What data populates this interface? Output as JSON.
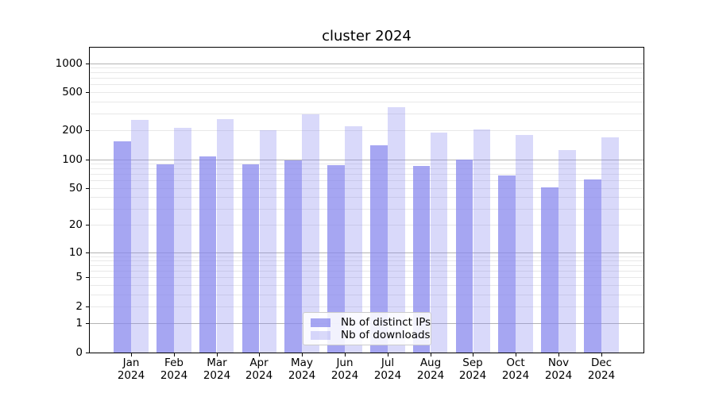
{
  "chart_data": {
    "type": "bar",
    "title": "cluster 2024",
    "categories": [
      "Jan",
      "Feb",
      "Mar",
      "Apr",
      "May",
      "Jun",
      "Jul",
      "Aug",
      "Sep",
      "Oct",
      "Nov",
      "Dec"
    ],
    "category_year": "2024",
    "series": [
      {
        "name": "Nb of distinct IPs",
        "color": "#8888ee",
        "alpha": 0.75,
        "values": [
          155,
          89,
          108,
          89,
          97,
          86,
          141,
          85,
          100,
          67,
          51,
          62
        ]
      },
      {
        "name": "Nb of downloads",
        "color": "#8888ee",
        "alpha": 0.32,
        "values": [
          257,
          213,
          262,
          200,
          294,
          221,
          348,
          189,
          205,
          180,
          126,
          170
        ]
      }
    ],
    "y_scale": "log1p",
    "y_ticks": [
      0,
      1,
      2,
      5,
      10,
      20,
      50,
      100,
      200,
      500,
      1000
    ],
    "ylim": [
      0,
      1450
    ],
    "grid": {
      "major_at": [
        1,
        10,
        100,
        1000
      ],
      "major_color": "#b3b3b3",
      "minor_color": "#e8e8e8"
    },
    "legend_position": "lower center",
    "axis_color": "#000000",
    "xlabel": "",
    "ylabel": ""
  }
}
